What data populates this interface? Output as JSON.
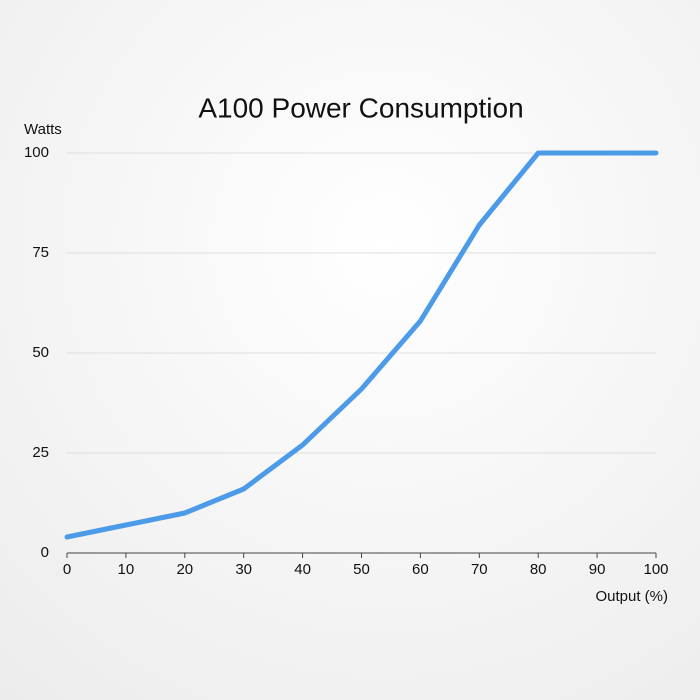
{
  "chart_data": {
    "type": "line",
    "title": "A100 Power Consumption",
    "y_label": "Watts",
    "x_label": "Output (%)",
    "x": [
      0,
      10,
      20,
      30,
      40,
      50,
      60,
      70,
      80,
      90,
      100
    ],
    "values": [
      4,
      7,
      10,
      16,
      27,
      41,
      58,
      82,
      100,
      100,
      100
    ],
    "color": "#4c9be8",
    "xlim": [
      0,
      100
    ],
    "xticks": [
      0,
      10,
      20,
      30,
      40,
      50,
      60,
      70,
      80,
      90,
      100
    ],
    "ylim": [
      0,
      100
    ],
    "yticks": [
      0,
      25,
      50,
      75,
      100
    ],
    "grid": true
  }
}
